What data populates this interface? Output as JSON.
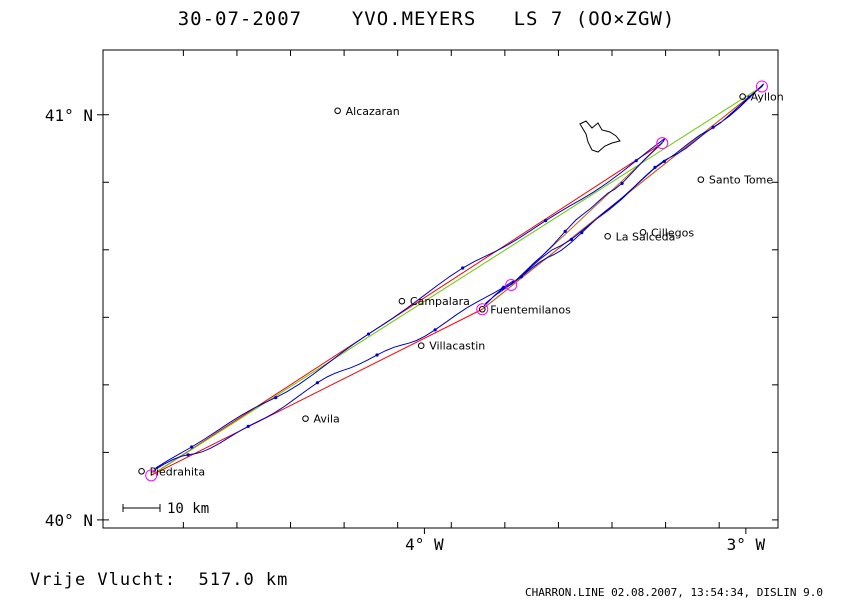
{
  "header": {
    "title": "30-07-2007    YVO.MEYERS   LS 7 (OO×ZGW)"
  },
  "footer": {
    "flight_label": "Vrije Vlucht:  517.0 km",
    "software": "CHARRON.LINE 02.08.2007, 13:54:34, DISLIN 9.0"
  },
  "axes": {
    "lat_labels": [
      {
        "text": "41° N",
        "lat": 41.0
      },
      {
        "text": "40° N",
        "lat": 40.0
      }
    ],
    "lon_labels": [
      {
        "text": "4° W",
        "lon": -4.0
      },
      {
        "text": "3° W",
        "lon": -3.0
      }
    ],
    "lon_range": [
      -5.0,
      -2.9
    ],
    "lat_range": [
      39.98,
      41.16
    ]
  },
  "scale_bar": {
    "label": "10 km"
  },
  "towns": [
    {
      "name": "Alcazaran",
      "lon": -4.27,
      "lat": 41.01
    },
    {
      "name": "Ayllon",
      "lon": -3.01,
      "lat": 41.045
    },
    {
      "name": "Santo Tome",
      "lon": -3.14,
      "lat": 40.84
    },
    {
      "name": "Cillegos",
      "lon": -3.32,
      "lat": 40.71
    },
    {
      "name": "La Salceda",
      "lon": -3.43,
      "lat": 40.7
    },
    {
      "name": "Campalara",
      "lon": -4.07,
      "lat": 40.54
    },
    {
      "name": "Fuentemilanos",
      "lon": -3.82,
      "lat": 40.52
    },
    {
      "name": "Villacastin",
      "lon": -4.01,
      "lat": 40.43
    },
    {
      "name": "Avila",
      "lon": -4.37,
      "lat": 40.25
    },
    {
      "name": "Piedrahita",
      "lon": -4.88,
      "lat": 40.12
    }
  ],
  "turnpoints": [
    {
      "lon": -4.85,
      "lat": 40.11
    },
    {
      "lon": -3.26,
      "lat": 40.93
    },
    {
      "lon": -3.82,
      "lat": 40.52
    },
    {
      "lon": -2.95,
      "lat": 41.07
    },
    {
      "lon": -3.73,
      "lat": 40.58
    }
  ],
  "colors": {
    "track": "#0000cc",
    "outer_leg": "#ff0000",
    "inner_leg": "#66cc00",
    "return_leg": "#cc6600",
    "turnpoint": "#ff00ff",
    "land_outline": "#000000"
  }
}
